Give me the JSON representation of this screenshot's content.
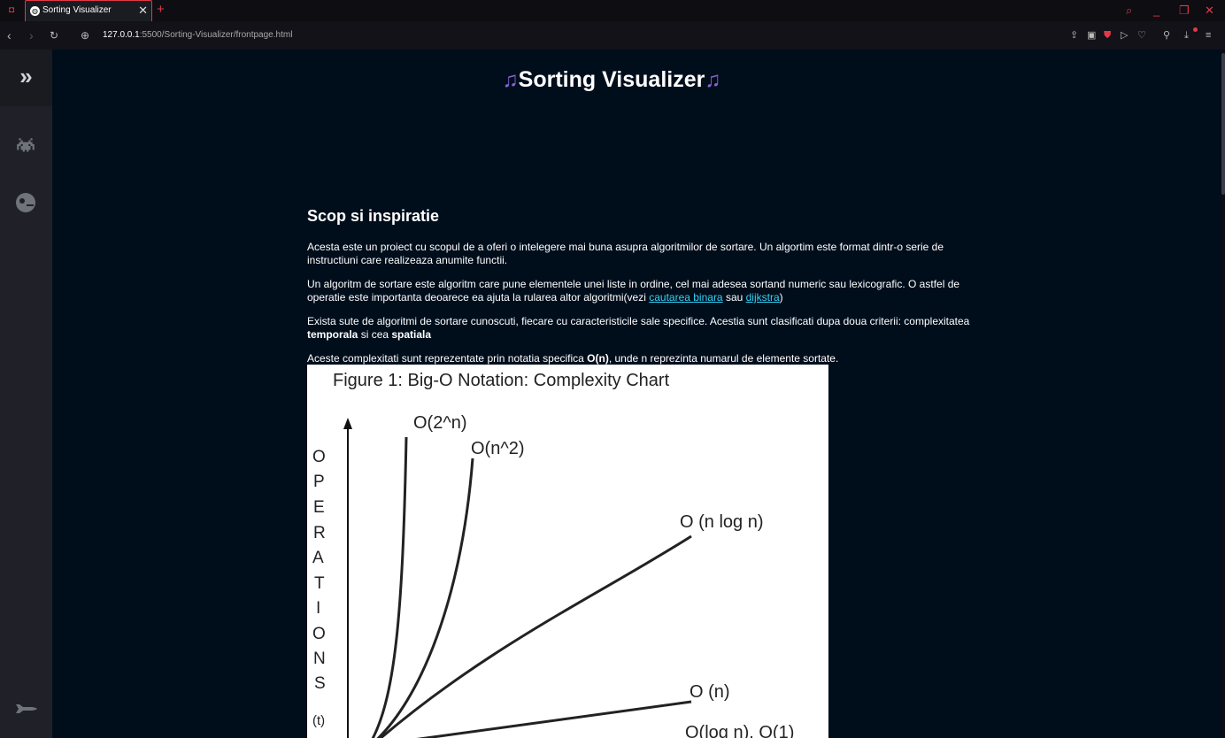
{
  "browser": {
    "tab": {
      "title": "Sorting Visualizer",
      "favicon": "globe-icon",
      "close": "✕"
    },
    "new_tab": "+",
    "url": {
      "host": "127.0.0.1",
      "rest": ":5500/Sorting-Visualizer/frontpage.html"
    },
    "accent_color": "#e3384a"
  },
  "sidebar": {
    "toggle": "»",
    "items": [
      {
        "icon": "space-invader-icon"
      },
      {
        "icon": "pacman-ghost-icon"
      },
      {
        "icon": "rocket-icon"
      }
    ]
  },
  "page": {
    "title": "Sorting Visualizer",
    "title_decoration": "♫",
    "section_heading": "Scop si inspiratie",
    "p1": "Acesta este un proiect cu scopul de a oferi o intelegere mai buna asupra algoritmilor de sortare. Un algortim este format dintr-o serie de instructiuni care realizeaza anumite functii.",
    "p2_text": "Un algoritm de sortare este algoritm care pune elementele unei liste in ordine, cel mai adesea sortand numeric sau lexicografic. O astfel de operatie este importanta deoarece ea ajuta la rularea altor algoritmi(vezi ",
    "p2_link1": "cautarea binara",
    "p2_mid": " sau ",
    "p2_link2": "dijkstra",
    "p2_end": ")",
    "p3_text": "Exista sute de algoritmi de sortare cunoscuti, fiecare cu caracteristicile sale specifice. Acestia sunt clasificati dupa doua criterii: complexitatea ",
    "p3_bold1": "temporala",
    "p3_mid": " si cea ",
    "p3_bold2": "spatiala",
    "p4_text": "Aceste complexitati sunt reprezentate prin notatia specifica ",
    "p4_bold": "O(n)",
    "p4_end": ", unde n reprezinta numarul de elemente sortate."
  },
  "figure": {
    "title": "Figure 1:  Big-O Notation: Complexity Chart",
    "y_axis_letters": [
      "O",
      "P",
      "E",
      "R",
      "A",
      "T",
      "I",
      "O",
      "N",
      "S"
    ],
    "y_axis_unit": "(t)",
    "curves": [
      "O(2^n)",
      "O(n^2)",
      "O (n log n)",
      "O (n)",
      "O(log n), O(1)"
    ]
  }
}
